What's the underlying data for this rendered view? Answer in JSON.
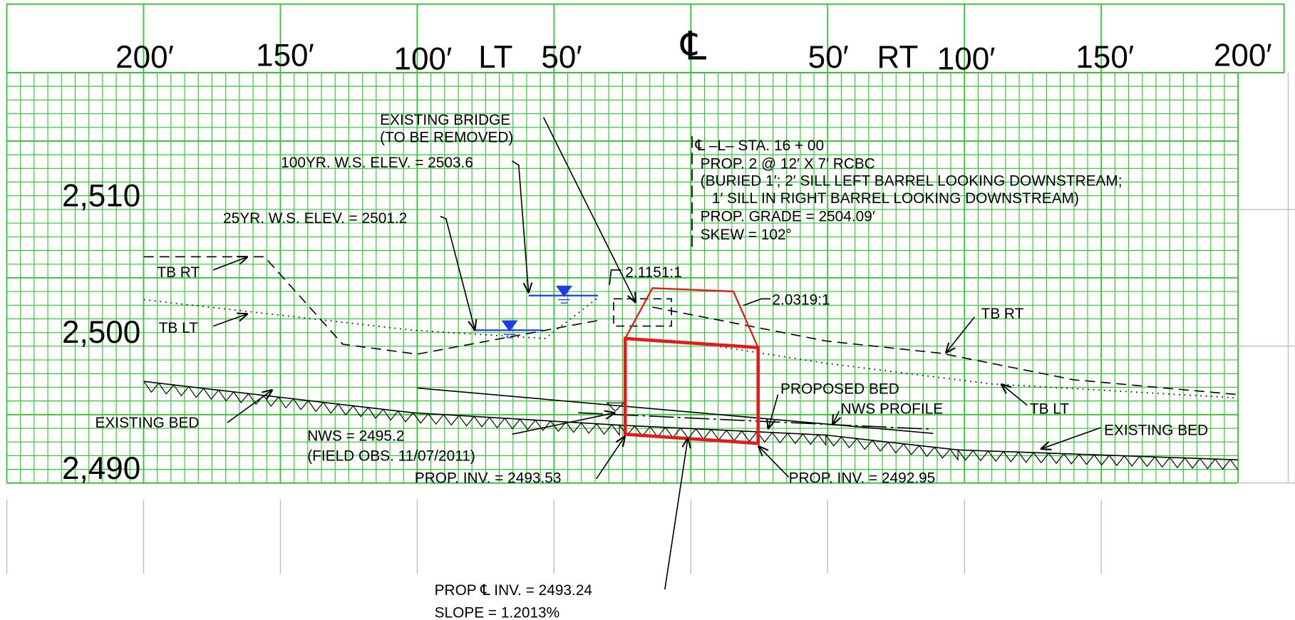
{
  "header": {
    "offsets": [
      "200′",
      "150′",
      "100′",
      "LT",
      "50′",
      "℄",
      "50′",
      "RT",
      "100′",
      "150′",
      "200′"
    ]
  },
  "elevations": [
    "2,510",
    "2,500",
    "2,490"
  ],
  "annotations": {
    "bridge": "EXISTING  BRIDGE",
    "bridge_note": "(TO  BE  REMOVED)",
    "ws100": "100YR. W.S. ELEV. = 2503.6",
    "ws25": "25YR. W.S. ELEV. = 2501.2",
    "tb_rt_left": "TB  RT",
    "tb_lt_left": "TB  LT",
    "bed_left": "EXISTING  BED",
    "nws": "NWS = 2495.2",
    "nws_note": "(FIELD  OBS. 11/07/2011)",
    "inv_left": "PROP. INV. = 2493.53",
    "inv_center": "PROP  ℄  INV.  =    2493.24",
    "slope": "SLOPE  =    1.2013%",
    "slope_left": "2.1151:1",
    "slope_right": "2.0319:1",
    "station": "℄  –L–  STA. 16 + 00",
    "culvert": "PROP. 2  @   12′ X  7′  RCBC",
    "buried": "(BURIED  1′; 2′ SILL  LEFT  BARREL  LOOKING  DOWNSTREAM;",
    "sill": "1′ SILL  IN   RIGHT  BARREL  LOOKING  DOWNSTREAM)",
    "grade": "PROP. GRADE = 2504.09′",
    "skew": "SKEW = 102°",
    "tb_rt_right": "TB  RT",
    "proposed_bed": "PROPOSED  BED",
    "nws_profile": "NWS  PROFILE",
    "tb_lt_right": "TB  LT",
    "bed_right": "EXISTING  BED",
    "inv_right": "PROP. INV. = 2492.95"
  }
}
